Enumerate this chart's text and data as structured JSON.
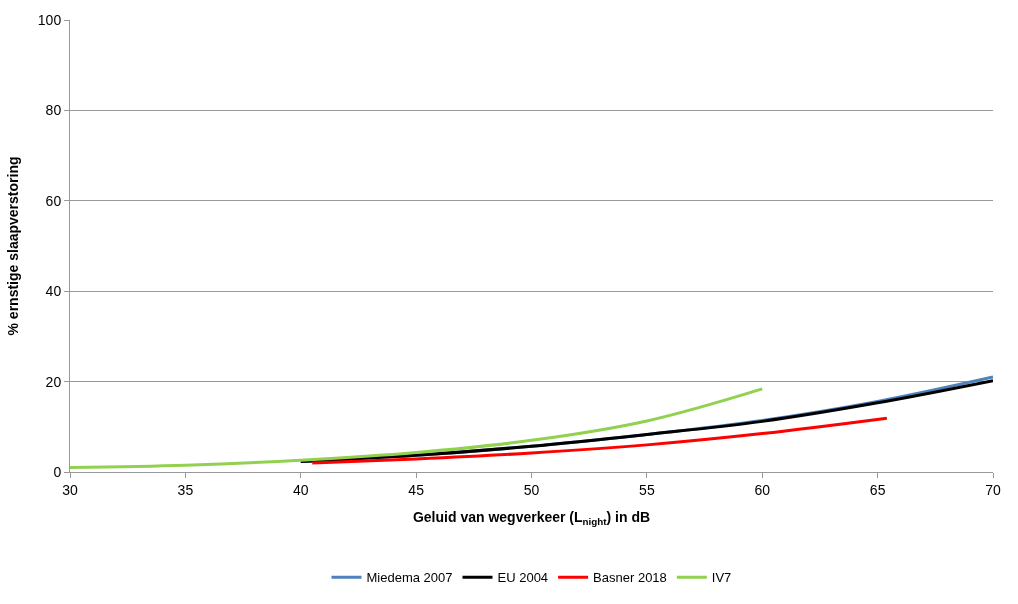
{
  "chart_data": {
    "type": "line",
    "xlabel": "Geluid van wegverkeer (L$_{night}$) in dB",
    "ylabel": "% ernstige slaapverstoring",
    "xlim": [
      30,
      70
    ],
    "xticks": [
      30,
      35,
      40,
      45,
      50,
      55,
      60,
      65,
      70
    ],
    "ylim": [
      0,
      100
    ],
    "yticks": [
      0,
      20,
      40,
      60,
      80,
      100
    ],
    "grid": "y",
    "legend": "bottom",
    "marker": "none",
    "line_style": "solid",
    "series": [
      {
        "name": "Miedema 2007",
        "color": "#4f81bd",
        "x": [
          40,
          45,
          50,
          55,
          60,
          65,
          70
        ],
        "values": [
          2.3,
          3.7,
          5.7,
          8.3,
          11.4,
          15.6,
          21.0
        ]
      },
      {
        "name": "EU 2004",
        "color": "#000000",
        "x": [
          40,
          45,
          50,
          55,
          60,
          65,
          70
        ],
        "values": [
          2.3,
          3.7,
          5.7,
          8.3,
          11.2,
          15.3,
          20.2
        ]
      },
      {
        "name": "Basner 2018",
        "color": "#ff0000",
        "x": [
          40.5,
          45,
          50,
          55,
          60,
          65.4
        ],
        "values": [
          2.0,
          2.9,
          4.2,
          6.0,
          8.5,
          11.9
        ]
      },
      {
        "name": "IV7",
        "color": "#92d050",
        "x": [
          30,
          35,
          40,
          45,
          50,
          55,
          60
        ],
        "values": [
          1.0,
          1.5,
          2.6,
          4.3,
          7.0,
          11.3,
          18.4
        ]
      }
    ]
  }
}
